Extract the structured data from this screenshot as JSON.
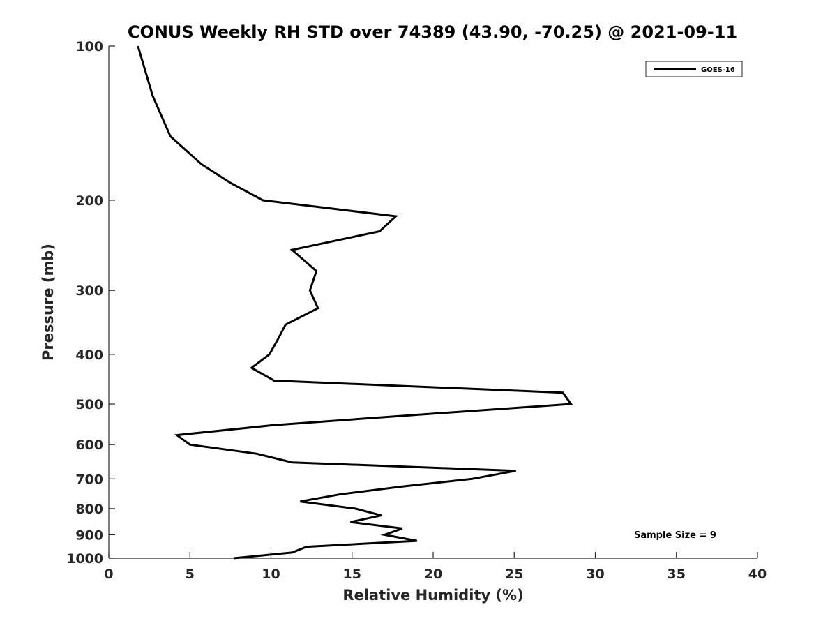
{
  "chart_data": {
    "type": "line",
    "title": "CONUS Weekly RH STD over 74389 (43.90, -70.25) @ 2021-09-11",
    "xlabel": "Relative Humidity (%)",
    "ylabel": "Pressure (mb)",
    "xlim": [
      0,
      40
    ],
    "ylim": [
      100,
      1000
    ],
    "y_scale": "log",
    "y_reversed": true,
    "grid": false,
    "legend_position": "top-right",
    "x_ticks": [
      "0",
      "5",
      "10",
      "15",
      "20",
      "25",
      "30",
      "35",
      "40"
    ],
    "y_ticks": [
      "100",
      "200",
      "300",
      "400",
      "500",
      "600",
      "700",
      "800",
      "900",
      "1000"
    ],
    "series": [
      {
        "name": "GOES-16",
        "color": "#000000",
        "points": [
          {
            "x": 1.8,
            "y": 100
          },
          {
            "x": 2.7,
            "y": 125
          },
          {
            "x": 3.8,
            "y": 150
          },
          {
            "x": 5.7,
            "y": 170
          },
          {
            "x": 7.5,
            "y": 185
          },
          {
            "x": 9.5,
            "y": 200
          },
          {
            "x": 17.7,
            "y": 215
          },
          {
            "x": 16.7,
            "y": 230
          },
          {
            "x": 11.3,
            "y": 250
          },
          {
            "x": 12.8,
            "y": 275
          },
          {
            "x": 12.4,
            "y": 300
          },
          {
            "x": 12.9,
            "y": 325
          },
          {
            "x": 10.9,
            "y": 350
          },
          {
            "x": 10.4,
            "y": 375
          },
          {
            "x": 9.9,
            "y": 400
          },
          {
            "x": 8.8,
            "y": 425
          },
          {
            "x": 10.2,
            "y": 450
          },
          {
            "x": 28.0,
            "y": 475
          },
          {
            "x": 28.5,
            "y": 500
          },
          {
            "x": 18.9,
            "y": 525
          },
          {
            "x": 10.1,
            "y": 550
          },
          {
            "x": 4.2,
            "y": 575
          },
          {
            "x": 5.0,
            "y": 600
          },
          {
            "x": 9.1,
            "y": 625
          },
          {
            "x": 11.3,
            "y": 650
          },
          {
            "x": 25.1,
            "y": 675
          },
          {
            "x": 22.4,
            "y": 700
          },
          {
            "x": 18.0,
            "y": 725
          },
          {
            "x": 14.3,
            "y": 750
          },
          {
            "x": 11.8,
            "y": 775
          },
          {
            "x": 15.2,
            "y": 800
          },
          {
            "x": 16.8,
            "y": 825
          },
          {
            "x": 14.9,
            "y": 850
          },
          {
            "x": 18.1,
            "y": 875
          },
          {
            "x": 17.0,
            "y": 900
          },
          {
            "x": 19.0,
            "y": 925
          },
          {
            "x": 12.2,
            "y": 950
          },
          {
            "x": 11.3,
            "y": 975
          },
          {
            "x": 7.7,
            "y": 1000
          }
        ]
      }
    ],
    "annotations": [
      {
        "text": "Sample Size = 9"
      }
    ]
  }
}
